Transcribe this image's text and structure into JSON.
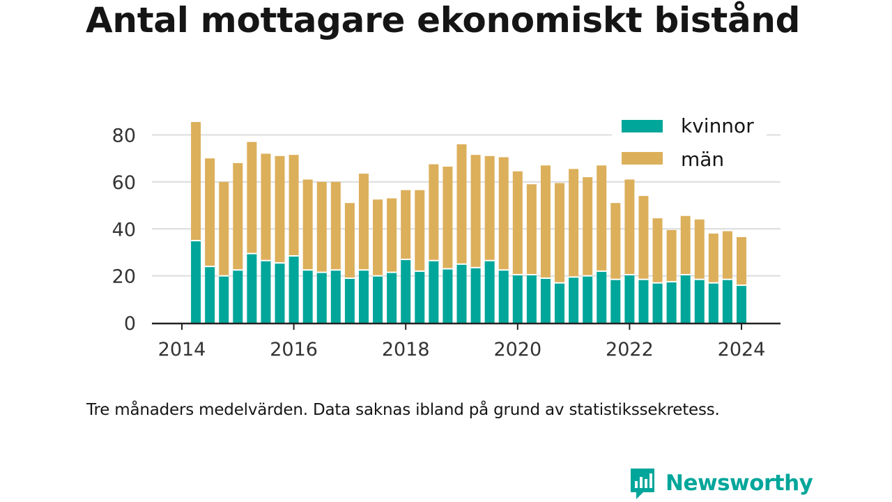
{
  "title": "Antal mottagare ekonomiskt bistånd",
  "footnote": "Tre månaders medelvärden. Data saknas ibland på grund av statistikssekretess.",
  "brand": {
    "name": "Newsworthy",
    "logo_icon": "bar-chart-speech-bubble-icon"
  },
  "colors": {
    "kvinnor": "#00a69a",
    "man": "#dcaf5b",
    "grid": "#dcdcdc",
    "axis": "#222222",
    "text": "#151515",
    "tick_text": "#333333",
    "brand": "#00a69a"
  },
  "chart_data": {
    "type": "bar",
    "stacked": true,
    "title": "Antal mottagare ekonomiskt bistånd",
    "xlabel": "",
    "ylabel": "",
    "xlim": [
      "2013-06",
      "2024-12"
    ],
    "ylim": [
      0,
      90
    ],
    "x_ticks": [
      "2014",
      "2016",
      "2018",
      "2020",
      "2022",
      "2024"
    ],
    "y_ticks": [
      0,
      20,
      40,
      60,
      80
    ],
    "grid": "horizontal",
    "legend_position": "top-right",
    "categories": [
      "2014-04",
      "2014-07",
      "2014-10",
      "2015-01",
      "2015-04",
      "2015-07",
      "2015-10",
      "2016-01",
      "2016-04",
      "2016-07",
      "2016-10",
      "2017-01",
      "2017-04",
      "2017-07",
      "2017-10",
      "2018-01",
      "2018-04",
      "2018-07",
      "2018-10",
      "2019-01",
      "2019-04",
      "2019-07",
      "2019-10",
      "2020-01",
      "2020-04",
      "2020-07",
      "2020-10",
      "2021-01",
      "2021-04",
      "2021-07",
      "2021-10",
      "2022-01",
      "2022-04",
      "2022-07",
      "2022-10",
      "2023-01",
      "2023-04",
      "2023-07",
      "2023-10",
      "2024-01"
    ],
    "series": [
      {
        "name": "kvinnor",
        "values": [
          35,
          24,
          20,
          22.5,
          29.5,
          26.5,
          25.5,
          28.5,
          22.5,
          21.5,
          22.5,
          19,
          22.5,
          20,
          21.5,
          27,
          22,
          26.5,
          23,
          25,
          23.5,
          26.5,
          22.5,
          20.5,
          20.5,
          19,
          17,
          19.5,
          20,
          22,
          18.5,
          20.5,
          18.5,
          17,
          17.5,
          20.5,
          18.5,
          17,
          18.5,
          16
        ]
      },
      {
        "name": "män",
        "values": [
          50.5,
          46,
          40,
          45.5,
          47.5,
          45.5,
          45.5,
          43,
          38.5,
          38.5,
          37.5,
          32,
          41,
          32.5,
          31.5,
          29.5,
          34.5,
          41,
          43.5,
          51,
          48,
          44.5,
          48,
          44,
          38.5,
          48,
          42.5,
          46,
          42,
          45,
          32.5,
          40.5,
          35.5,
          27.5,
          22,
          25,
          25.5,
          21,
          20.5,
          20.5
        ]
      }
    ]
  }
}
